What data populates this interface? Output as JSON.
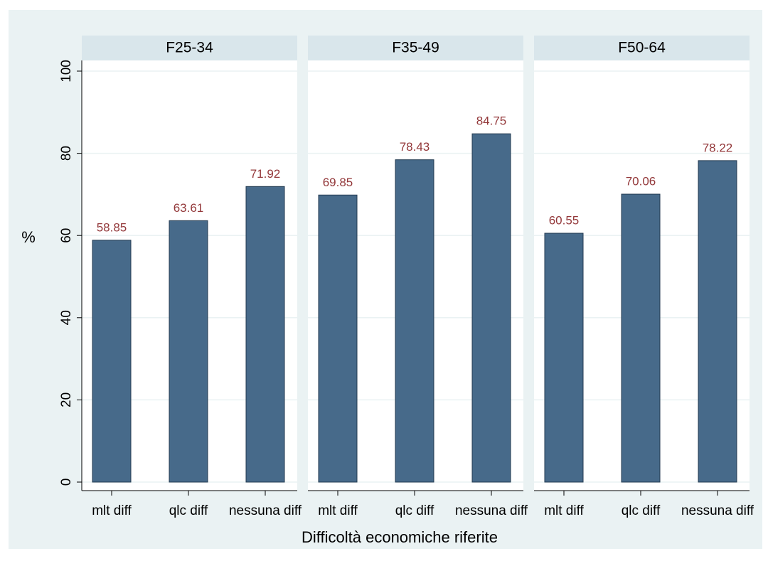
{
  "chart_data": {
    "type": "bar",
    "ylabel": "%",
    "xlabel": "Difficoltà economiche riferite",
    "categories": [
      "mlt diff",
      "qlc diff",
      "nessuna diff"
    ],
    "ylim": [
      0,
      100
    ],
    "yticks": [
      0,
      20,
      40,
      60,
      80,
      100
    ],
    "grid": true,
    "color": "#476a8a",
    "label_color": "#93383a",
    "panels": [
      {
        "title": "F25-34",
        "values": [
          58.85,
          63.61,
          71.92
        ]
      },
      {
        "title": "F35-49",
        "values": [
          69.85,
          78.43,
          84.75
        ]
      },
      {
        "title": "F50-64",
        "values": [
          60.55,
          70.06,
          78.22
        ]
      }
    ]
  }
}
